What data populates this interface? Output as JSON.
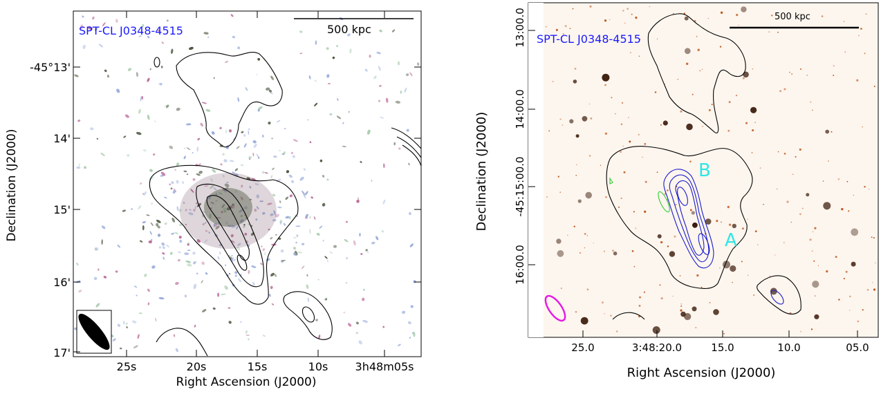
{
  "left_panel": {
    "cluster_label": "SPT-CL J0348-4515",
    "scale_label": "500 kpc",
    "xlabel": "Right Ascension (J2000)",
    "ylabel": "Declination (J2000)",
    "xticks": [
      "25s",
      "20s",
      "15s",
      "10s",
      "3h48m05s"
    ],
    "yticks": [
      "-45°13'",
      "14'",
      "15'",
      "16'",
      "17'"
    ],
    "colors": {
      "label": "#1a1aff",
      "contour": "#000000",
      "galaxy_pink": "#b0558a",
      "galaxy_blue": "#8a9fd6",
      "galaxy_dark": "#2b3a1e"
    }
  },
  "right_panel": {
    "cluster_label": "SPT-CL J0348-4515",
    "scale_label": "500 kpc",
    "xlabel": "Right Ascension (J2000)",
    "ylabel": "Declination (J2000)",
    "xticks": [
      "25.0",
      "3:48:20.0",
      "15.0",
      "10.0",
      "05.0"
    ],
    "yticks": [
      "13:00.0",
      "14:00.0",
      "-45:15:00.0",
      "16:00.0"
    ],
    "source_a": "A",
    "source_b": "B",
    "colors": {
      "label": "#1a1aff",
      "source_labels": "#2ee6e6",
      "blue_contour": "#1a1acc",
      "green_contour": "#33cc33",
      "beam": "#e61ae6",
      "background": "#fdf6ee",
      "star": "#b84a0d"
    }
  }
}
